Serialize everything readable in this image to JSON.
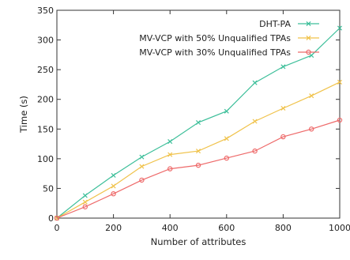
{
  "chart_data": {
    "type": "line",
    "title": "",
    "xlabel": "Number of attributes",
    "ylabel": "Time (s)",
    "xlim": [
      0,
      1000
    ],
    "ylim": [
      0,
      350
    ],
    "xticks": [
      0,
      200,
      400,
      600,
      800,
      1000
    ],
    "yticks": [
      0,
      50,
      100,
      150,
      200,
      250,
      300,
      350
    ],
    "grid": false,
    "legend_position": "top-right",
    "x": [
      0,
      100,
      200,
      300,
      400,
      500,
      600,
      700,
      800,
      900,
      1000
    ],
    "series": [
      {
        "name": "DHT-PA",
        "color": "#3dbf9a",
        "marker": "x",
        "values": [
          0,
          38,
          72,
          103,
          129,
          161,
          180,
          228,
          255,
          274,
          320
        ]
      },
      {
        "name": "MV-VCP with 50% Unqualified TPAs",
        "color": "#f0c24a",
        "marker": "x",
        "values": [
          0,
          27,
          54,
          87,
          107,
          113,
          134,
          163,
          185,
          206,
          229
        ]
      },
      {
        "name": "MV-VCP with 30% Unqualified TPAs",
        "color": "#ee6a6a",
        "marker": "o",
        "values": [
          0,
          19,
          41,
          64,
          83,
          89,
          101,
          113,
          137,
          150,
          165
        ]
      }
    ]
  }
}
